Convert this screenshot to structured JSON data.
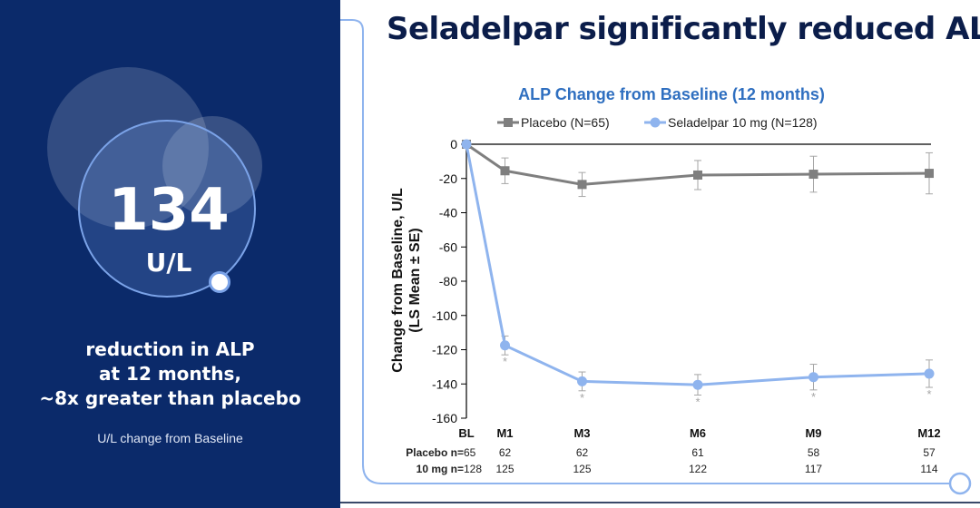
{
  "left_panel": {
    "hero_value": "134",
    "hero_unit": "U/L",
    "description_lines": [
      "reduction in ALP",
      "at 12 months,",
      "~8x greater than placebo"
    ],
    "note": "U/L change from Baseline"
  },
  "slide_title": "Seladelpar significantly reduced ALP",
  "chart_data": {
    "type": "line",
    "title": "ALP Change from Baseline (12 months)",
    "ylabel_lines": [
      "Change from Baseline, U/L",
      "(LS Mean ± SE)"
    ],
    "xlabel": "",
    "x": [
      "BL",
      "M1",
      "M3",
      "M6",
      "M9",
      "M12"
    ],
    "x_months": [
      0,
      1,
      3,
      6,
      9,
      12
    ],
    "ylim": [
      -160,
      0
    ],
    "yticks": [
      0,
      -20,
      -40,
      -60,
      -80,
      -100,
      -120,
      -140,
      -160
    ],
    "legend_position": "top",
    "grid": false,
    "series": [
      {
        "name": "Placebo (N=65)",
        "color": "#7f7f7f",
        "marker": "square",
        "values": [
          0,
          -15.5,
          -23.5,
          -18,
          -17.5,
          -17
        ],
        "se": [
          0,
          7.5,
          7,
          8.5,
          10.5,
          12
        ]
      },
      {
        "name": "Seladelpar 10 mg (N=128)",
        "color": "#8fb4ee",
        "marker": "circle",
        "values": [
          0,
          -117.5,
          -138.5,
          -140.5,
          -136,
          -134
        ],
        "se": [
          0,
          5.5,
          5.5,
          6,
          7.5,
          8
        ]
      }
    ],
    "significance_markers": [
      "",
      "*",
      "*",
      "*",
      "*",
      "*"
    ],
    "n_table": {
      "rows": [
        {
          "label": "Placebo n=",
          "values": [
            "65",
            "62",
            "62",
            "61",
            "58",
            "57"
          ]
        },
        {
          "label": "10 mg n=",
          "values": [
            "128",
            "125",
            "125",
            "122",
            "117",
            "114"
          ]
        }
      ]
    }
  }
}
